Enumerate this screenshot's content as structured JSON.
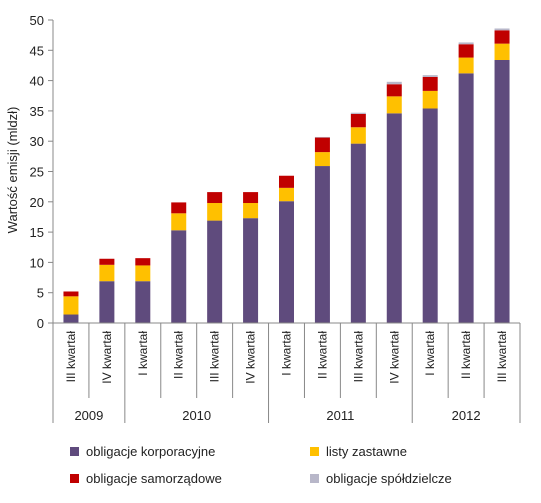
{
  "chart_data": {
    "type": "bar",
    "stacked": true,
    "title": "",
    "xlabel": "",
    "ylabel": "Wartość emisji (mldzł)",
    "ylim": [
      0,
      50
    ],
    "yticks": [
      0,
      5,
      10,
      15,
      20,
      25,
      30,
      35,
      40,
      45,
      50
    ],
    "grid": false,
    "legend_position": "bottom",
    "categories": [
      "III kwartał",
      "IV kwartał",
      "I kwartał",
      "II kwartał",
      "III kwartał",
      "IV kwartał",
      "I kwartał",
      "II kwartał",
      "III kwartał",
      "IV kwartał",
      "I kwartał",
      "II kwartał",
      "III kwartał"
    ],
    "year_groups": [
      {
        "label": "2009",
        "start": 0,
        "count": 2
      },
      {
        "label": "2010",
        "start": 2,
        "count": 4
      },
      {
        "label": "2011",
        "start": 6,
        "count": 4
      },
      {
        "label": "2012",
        "start": 10,
        "count": 3
      }
    ],
    "series": [
      {
        "name": "obligacje korporacyjne",
        "color": "#5f4b7d",
        "values": [
          1.4,
          6.9,
          6.9,
          15.3,
          16.9,
          17.3,
          20.1,
          25.9,
          29.6,
          34.6,
          35.4,
          41.2,
          43.4
        ]
      },
      {
        "name": "listy zastawne",
        "color": "#ffc000",
        "values": [
          3.0,
          2.7,
          2.6,
          2.8,
          2.9,
          2.5,
          2.2,
          2.3,
          2.7,
          2.8,
          2.9,
          2.6,
          2.7
        ]
      },
      {
        "name": "obligacje samorządowe",
        "color": "#c00000",
        "values": [
          0.8,
          1.0,
          1.2,
          1.8,
          1.8,
          1.8,
          2.0,
          2.4,
          2.2,
          2.0,
          2.3,
          2.2,
          2.2
        ]
      },
      {
        "name": "obligacje spółdzielcze",
        "color": "#b8b7c9",
        "values": [
          0.0,
          0.0,
          0.0,
          0.0,
          0.0,
          0.0,
          0.0,
          0.1,
          0.2,
          0.4,
          0.3,
          0.3,
          0.3
        ]
      }
    ]
  }
}
